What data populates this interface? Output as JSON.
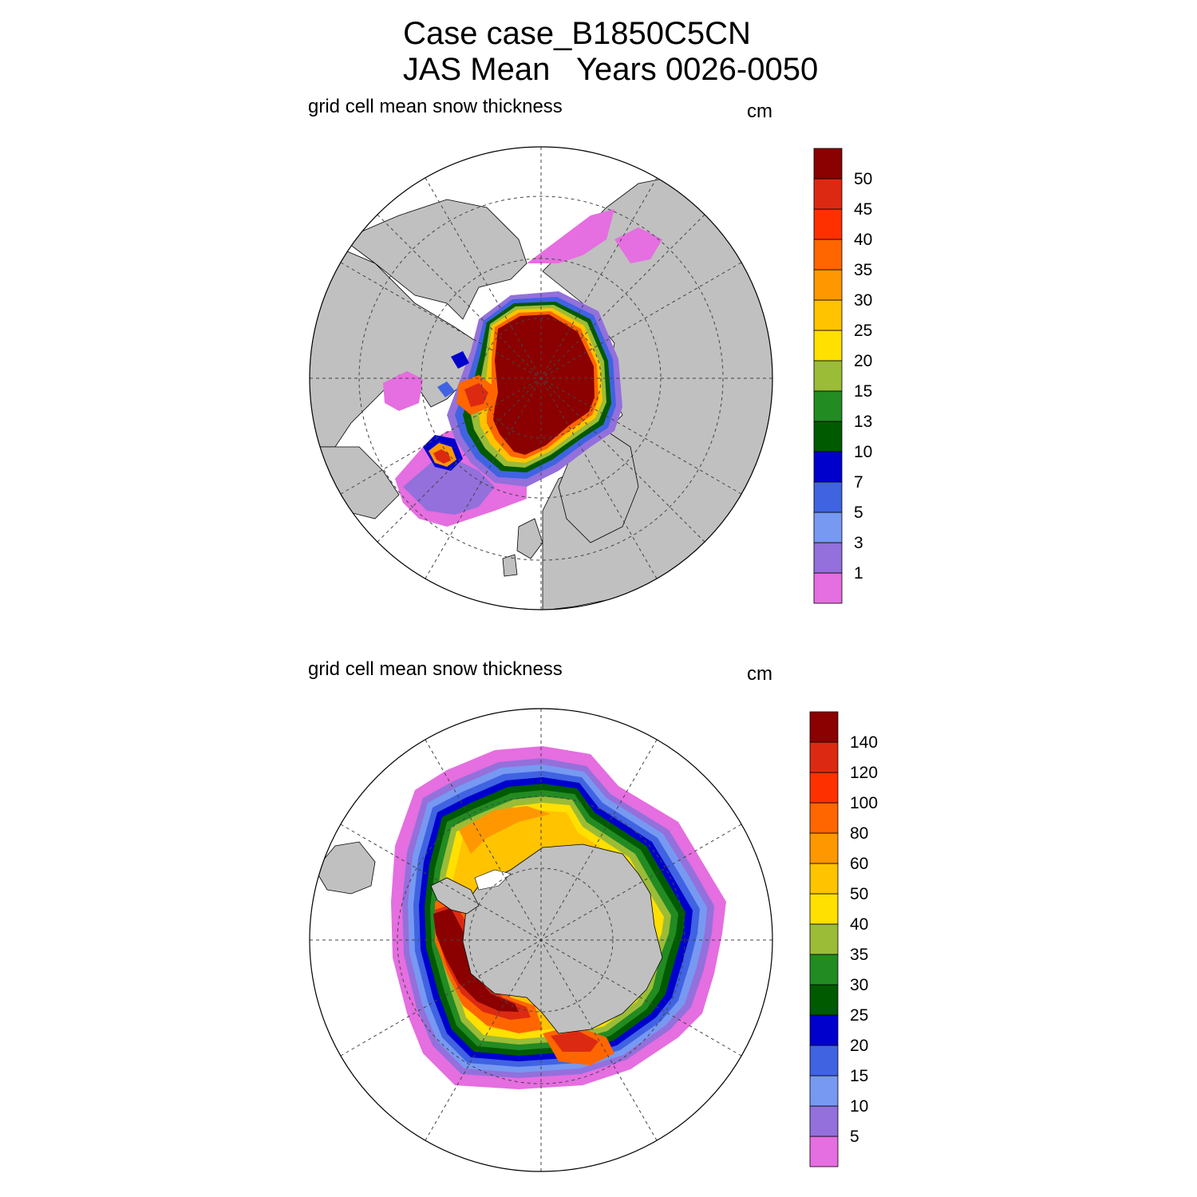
{
  "header": {
    "title_line1": "Case case_B1850C5CN",
    "title_line2": "JAS Mean   Years 0026-0050"
  },
  "panels": [
    {
      "hemisphere": "north",
      "left_label": "grid cell mean snow thickness",
      "units": "cm",
      "colorbar_levels": [
        "1",
        "3",
        "5",
        "7",
        "10",
        "13",
        "15",
        "20",
        "25",
        "30",
        "35",
        "40",
        "45",
        "50"
      ]
    },
    {
      "hemisphere": "south",
      "left_label": "grid cell mean snow thickness",
      "units": "cm",
      "colorbar_levels": [
        "5",
        "10",
        "15",
        "20",
        "25",
        "30",
        "35",
        "40",
        "50",
        "60",
        "80",
        "100",
        "120",
        "140"
      ]
    }
  ],
  "colors": {
    "palette": [
      "#e56ee0",
      "#9370db",
      "#7799f2",
      "#4063e2",
      "#0000cd",
      "#005a00",
      "#228b22",
      "#9bbc37",
      "#ffe000",
      "#ffc300",
      "#ff9800",
      "#ff6600",
      "#ff3000",
      "#dc2a12",
      "#8b0000"
    ],
    "land": "#c0c0c0",
    "ocean": "#ffffff"
  }
}
